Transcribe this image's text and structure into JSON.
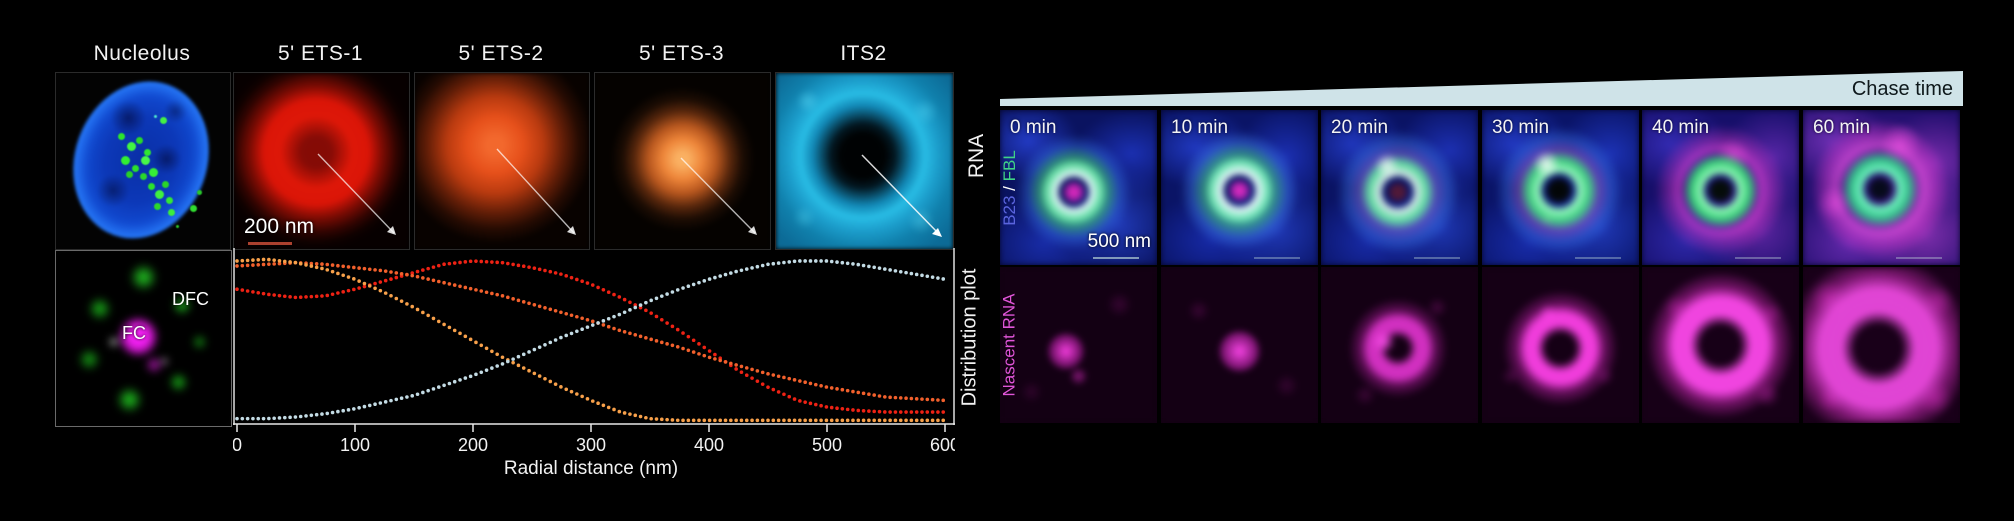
{
  "left": {
    "column_titles": [
      "Nucleolus",
      "5' ETS-1",
      "5' ETS-2",
      "5' ETS-3",
      "ITS2"
    ],
    "rna_side_label": "RNA",
    "distribution_side_label": "Distribution plot",
    "scalebar_label": "200 nm",
    "dfc_label": "DFC",
    "fc_label": "FC"
  },
  "chart_data": {
    "type": "line",
    "style": "dotted",
    "title": "",
    "xlabel": "Radial distance (nm)",
    "ylabel": "",
    "xlim": [
      0,
      600
    ],
    "ylim": [
      0,
      1
    ],
    "xticks": [
      0,
      100,
      200,
      300,
      400,
      500,
      600
    ],
    "grid": false,
    "legend": "none",
    "x": [
      0,
      25,
      50,
      75,
      100,
      125,
      150,
      175,
      200,
      225,
      250,
      275,
      300,
      325,
      350,
      375,
      400,
      425,
      450,
      475,
      500,
      525,
      550,
      575,
      600
    ],
    "series": [
      {
        "name": "5' ETS-1",
        "color": "#ee2214",
        "values": [
          0.8,
          0.77,
          0.75,
          0.76,
          0.8,
          0.85,
          0.9,
          0.95,
          0.97,
          0.96,
          0.93,
          0.89,
          0.83,
          0.75,
          0.66,
          0.55,
          0.43,
          0.31,
          0.21,
          0.13,
          0.09,
          0.07,
          0.06,
          0.06,
          0.06
        ]
      },
      {
        "name": "5' ETS-2",
        "color": "#f2602c",
        "values": [
          0.94,
          0.95,
          0.96,
          0.95,
          0.93,
          0.91,
          0.88,
          0.84,
          0.8,
          0.76,
          0.71,
          0.66,
          0.61,
          0.55,
          0.5,
          0.45,
          0.39,
          0.34,
          0.29,
          0.25,
          0.21,
          0.18,
          0.15,
          0.14,
          0.13
        ]
      },
      {
        "name": "5' ETS-3",
        "color": "#f7a04a",
        "values": [
          0.97,
          0.98,
          0.96,
          0.92,
          0.86,
          0.78,
          0.69,
          0.59,
          0.49,
          0.39,
          0.3,
          0.21,
          0.13,
          0.06,
          0.02,
          0.01,
          0.01,
          0.01,
          0.01,
          0.01,
          0.01,
          0.01,
          0.01,
          0.01,
          0.01
        ]
      },
      {
        "name": "ITS2",
        "color": "#c3dbe4",
        "values": [
          0.02,
          0.02,
          0.03,
          0.05,
          0.08,
          0.12,
          0.16,
          0.22,
          0.28,
          0.35,
          0.43,
          0.51,
          0.58,
          0.65,
          0.73,
          0.8,
          0.86,
          0.91,
          0.95,
          0.97,
          0.97,
          0.95,
          0.92,
          0.89,
          0.86
        ]
      }
    ]
  },
  "right": {
    "chase_label": "Chase time",
    "timepoints": [
      "0 min",
      "10 min",
      "20 min",
      "30 min",
      "40 min",
      "60 min"
    ],
    "fbl_label": "FBL",
    "slash_label": " / ",
    "b23_label": "B23",
    "nascent_label": "Nascent RNA",
    "scalebar_label": "500 nm",
    "colors": {
      "fbl": "#3fd287",
      "b23": "#5a64de",
      "nascent_rna": "#e055d8",
      "wedge": "#cfe3e8"
    }
  }
}
